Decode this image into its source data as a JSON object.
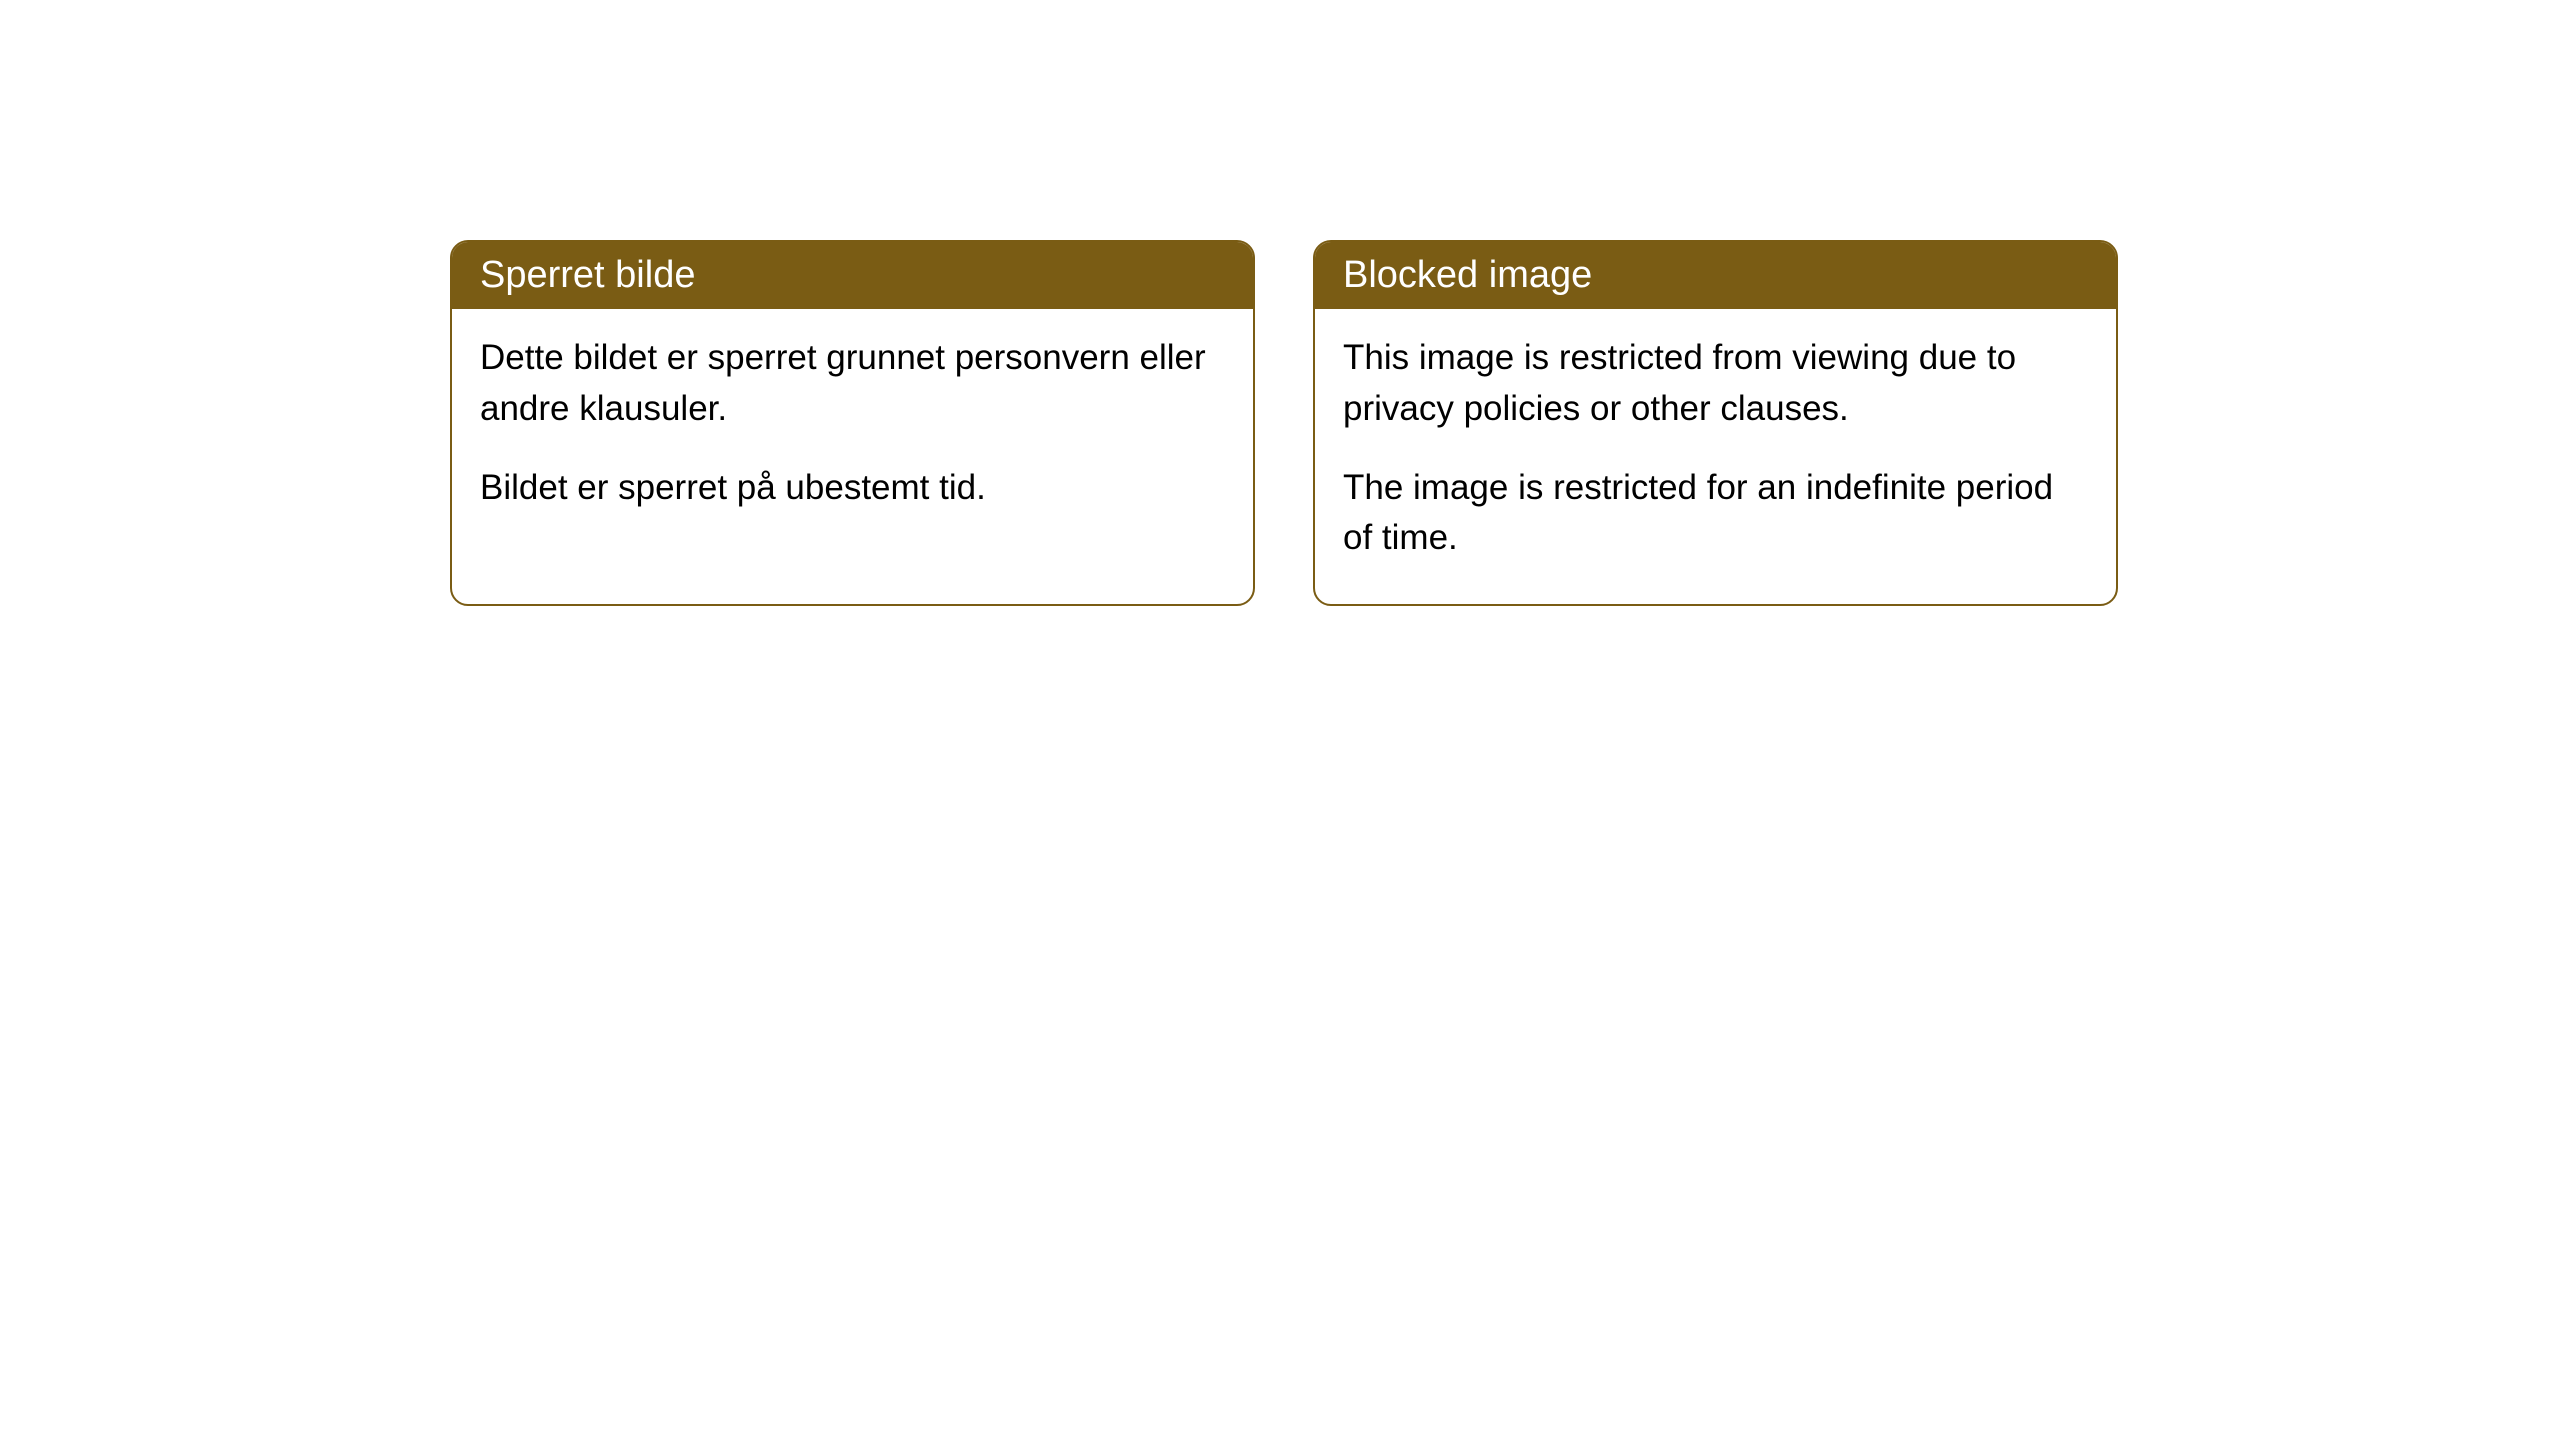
{
  "cards": [
    {
      "title": "Sperret bilde",
      "para1": "Dette bildet er sperret grunnet personvern eller andre klausuler.",
      "para2": "Bildet er sperret på ubestemt tid."
    },
    {
      "title": "Blocked image",
      "para1": "This image is restricted from viewing due to privacy policies or other clauses.",
      "para2": "The image is restricted for an indefinite period of time."
    }
  ],
  "style": {
    "header_bg": "#7a5c14",
    "header_text_color": "#ffffff",
    "border_color": "#7a5c14",
    "body_bg": "#ffffff",
    "body_text_color": "#000000",
    "border_radius": 18,
    "header_fontsize": 38,
    "body_fontsize": 35
  }
}
